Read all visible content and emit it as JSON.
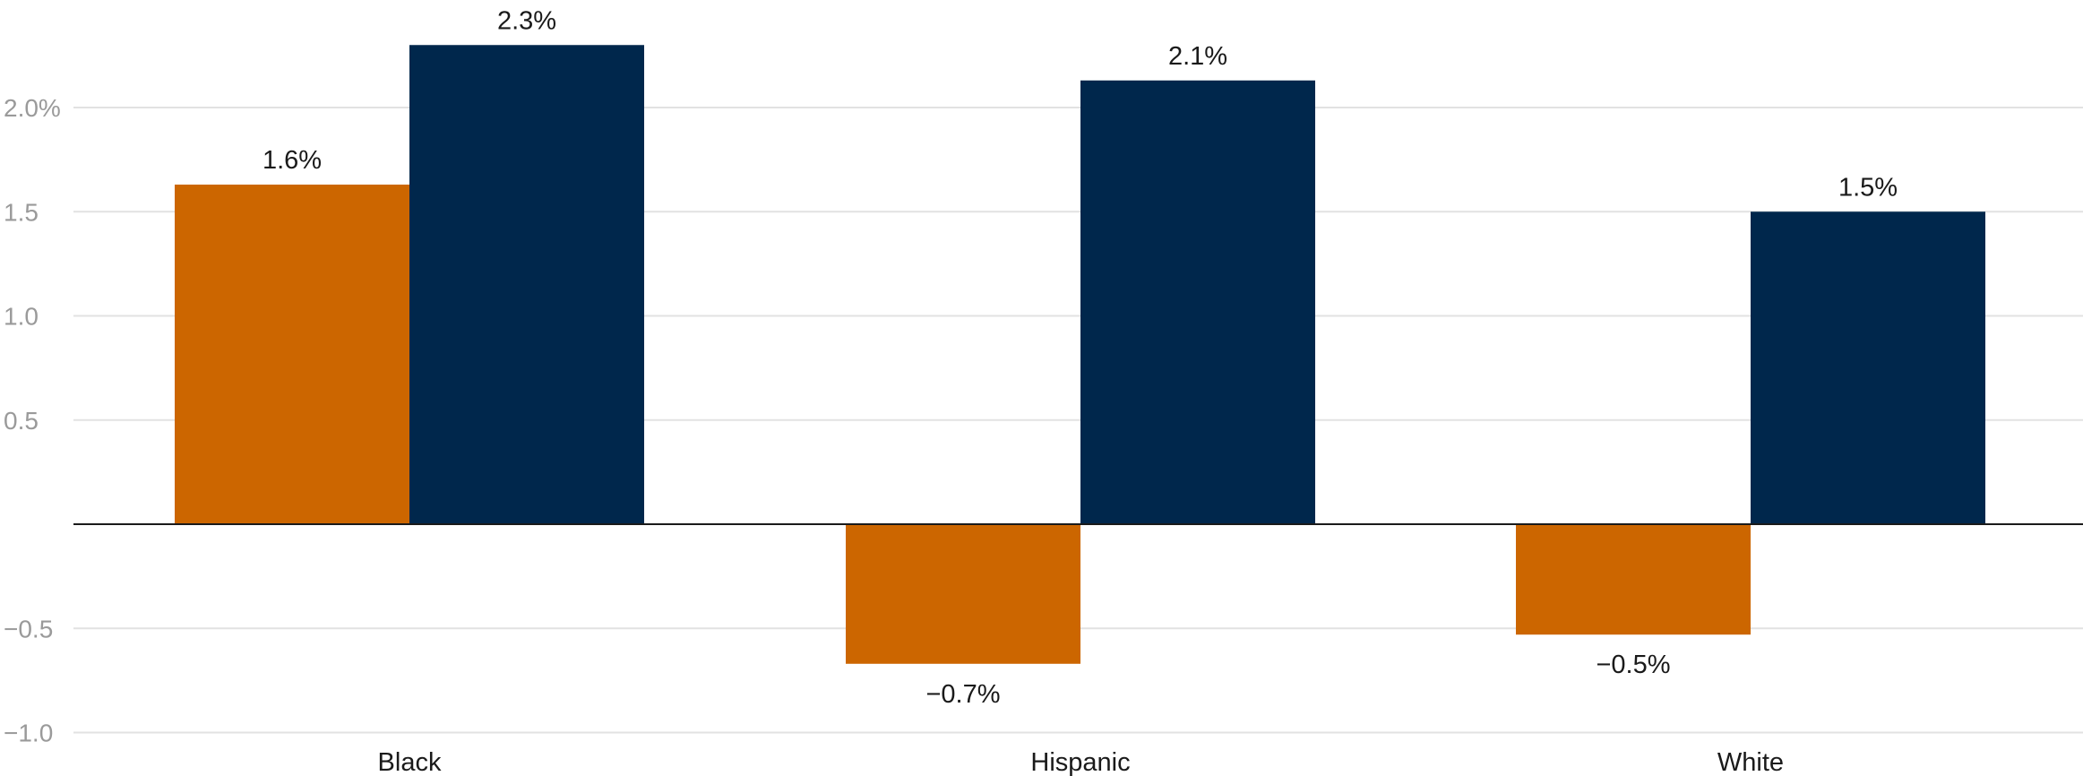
{
  "chart_data": {
    "type": "bar",
    "categories": [
      "Black",
      "Hispanic",
      "White"
    ],
    "series": [
      {
        "color": "#cc6600",
        "values": [
          1.63,
          -0.67,
          -0.53
        ],
        "labels": [
          "1.6%",
          "−0.7%",
          "−0.5%"
        ]
      },
      {
        "color": "#00274c",
        "values": [
          2.3,
          2.13,
          1.5
        ],
        "labels": [
          "2.3%",
          "2.1%",
          "1.5%"
        ]
      }
    ],
    "y_ticks": [
      {
        "value": 2.0,
        "label": "2.0%"
      },
      {
        "value": 1.5,
        "label": "1.5"
      },
      {
        "value": 1.0,
        "label": "1.0"
      },
      {
        "value": 0.5,
        "label": "0.5"
      },
      {
        "value": -0.5,
        "label": "−0.5"
      },
      {
        "value": -1.0,
        "label": "−1.0"
      }
    ],
    "ylim": [
      -1.0,
      2.3
    ],
    "grid": true,
    "legend": "none"
  }
}
